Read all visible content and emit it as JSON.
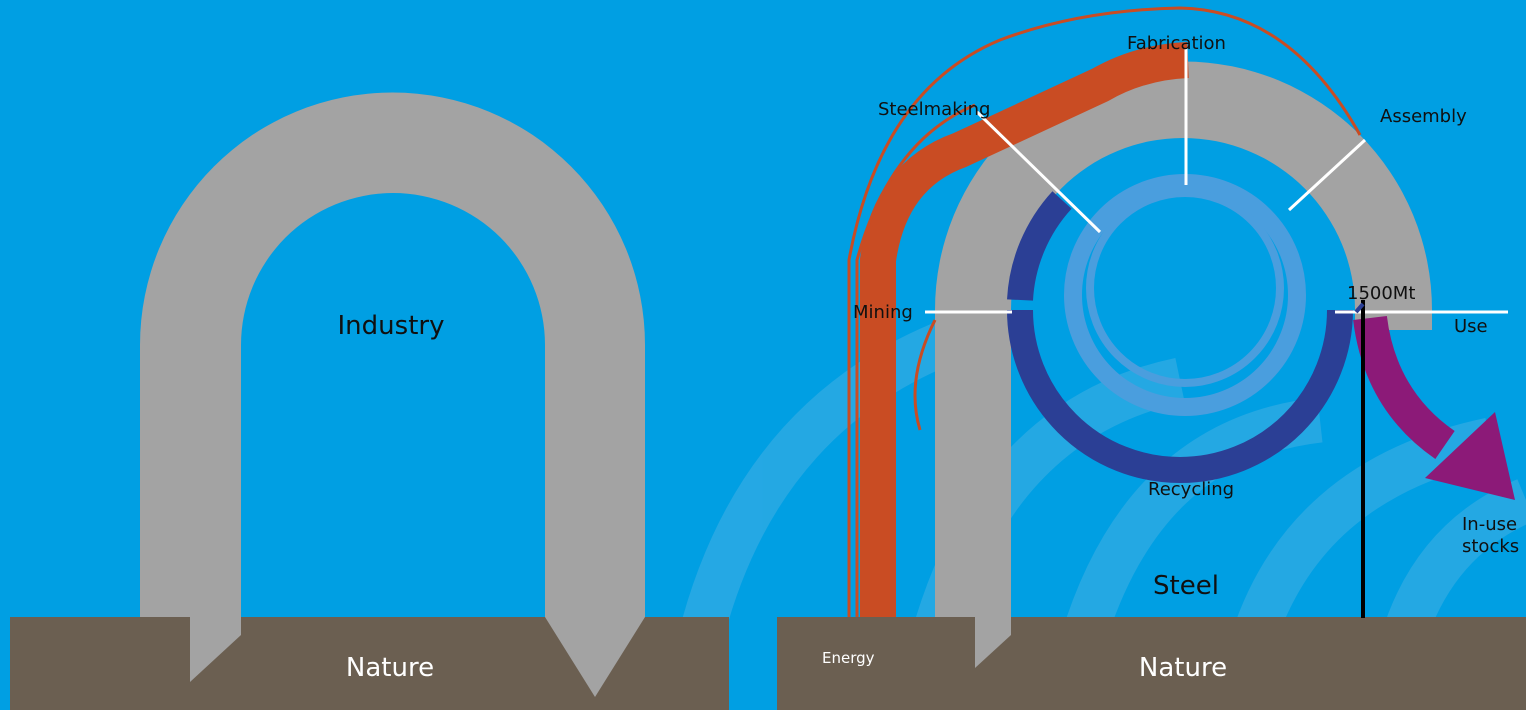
{
  "colors": {
    "background": "#009fe3",
    "swirl": "#29a9e3",
    "ground": "#6b5f51",
    "loop": "#a3a3a3",
    "energy": "#c94c23",
    "recycling_dark": "#2b3f95",
    "recycling_light": "#4a9ede",
    "in_use_stocks": "#8c1a78",
    "divider": "#ffffff",
    "flow_line": "#000000"
  },
  "left_panel": {
    "system_label": "Industry",
    "ground_label": "Nature"
  },
  "right_panel": {
    "stages": {
      "mining": "Mining",
      "steelmaking": "Steelmaking",
      "fabrication": "Fabrication",
      "assembly": "Assembly",
      "use": "Use"
    },
    "flow_value": "1500Mt",
    "recycling_label": "Recycling",
    "in_use_label_line1": "In-use",
    "in_use_label_line2": "stocks",
    "system_label": "Steel",
    "energy_label": "Energy",
    "ground_label": "Nature"
  },
  "icons": {
    "in_use_arrow": "curved-arrow-icon",
    "energy_flow": "energy-ribbon-icon"
  }
}
